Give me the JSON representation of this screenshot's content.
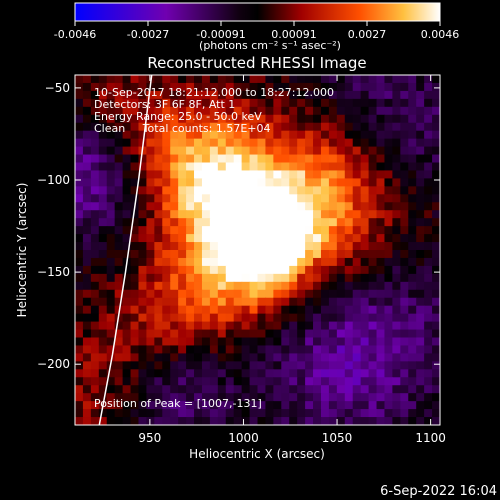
{
  "colorbar": {
    "ticks": [
      "-0.0046",
      "-0.0027",
      "-0.00091",
      "0.00091",
      "0.0027",
      "0.0046"
    ],
    "range": [
      -0.0046,
      0.0046
    ],
    "units_label": "(photons cm⁻² s⁻¹ asec⁻²)"
  },
  "chart_data": {
    "type": "heatmap",
    "title": "Reconstructed RHESSI Image",
    "xlabel": "Heliocentric X (arcsec)",
    "ylabel": "Heliocentric Y (arcsec)",
    "xlim": [
      910,
      1105
    ],
    "ylim": [
      -233,
      -43
    ],
    "xticks": [
      950,
      1000,
      1050,
      1100
    ],
    "yticks": [
      -50,
      -100,
      -150,
      -200
    ],
    "info_lines": [
      "10-Sep-2017 18:21:12.000 to 18:27:12.000",
      "Detectors: 3F 6F 8F, Att 1",
      "Energy Range: 25.0 - 50.0 keV",
      "Clean     Total counts: 1.57E+04"
    ],
    "peak_label": "Position of Peak = [1007,-131]",
    "peak": {
      "x": 1007,
      "y": -131,
      "value": 0.0046
    },
    "limb_curve": {
      "x": [
        923,
        930,
        937,
        944,
        951
      ],
      "y": [
        -233,
        -195,
        -150,
        -100,
        -43
      ]
    },
    "colormap": [
      "#0000ff",
      "#6000a0",
      "#000000",
      "#a01000",
      "#ff6000",
      "#ffe060",
      "#ffffff"
    ]
  },
  "footer": {
    "timestamp": "6-Sep-2022 16:04"
  }
}
